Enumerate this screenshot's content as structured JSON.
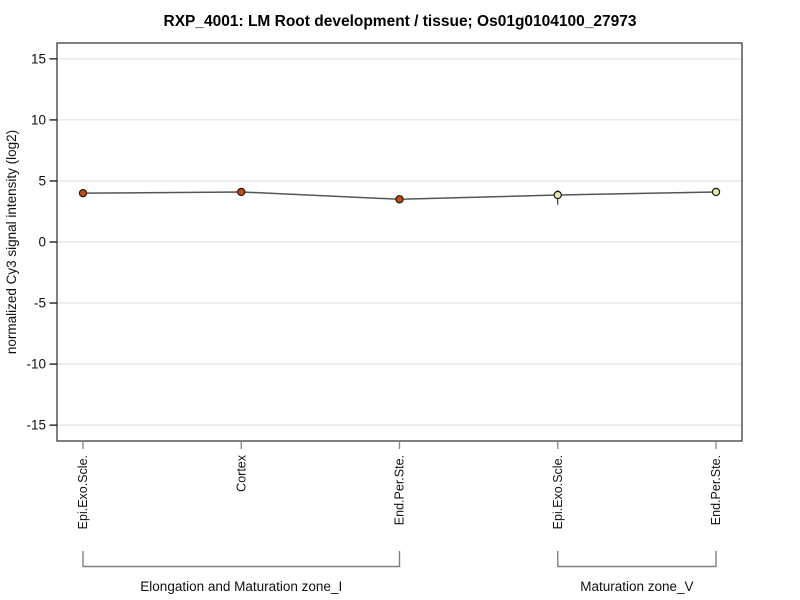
{
  "chart_data": {
    "type": "line",
    "title": "RXP_4001: LM Root development / tissue; Os01g0104100_27973",
    "ylabel": "normalized Cy3 signal intensity (log2)",
    "xlabel": "",
    "categories": [
      "Epi.Exo.Scle.",
      "Cortex",
      "End.Per.Ste.",
      "Epi.Exo.Scle.",
      "End.Per.Ste."
    ],
    "values": [
      4.0,
      4.1,
      3.5,
      3.85,
      4.1
    ],
    "error_bars": [
      null,
      null,
      null,
      {
        "low": 3.05,
        "high": 4.25
      },
      null
    ],
    "point_fills": [
      "#cc4a05",
      "#cc4a05",
      "#cc4a05",
      "#e9e9a8",
      "#e9e9a8"
    ],
    "point_stroke": "#1a1a1a",
    "groups": [
      {
        "label": "Elongation and Maturation zone_I",
        "from_index": 0,
        "to_index": 2
      },
      {
        "label": "Maturation zone_V",
        "from_index": 3,
        "to_index": 4
      }
    ],
    "yticks": [
      15,
      10,
      5,
      0,
      -5,
      -10,
      -15
    ],
    "ylim": [
      -16.3,
      16.3
    ],
    "grid": true,
    "legend": "none",
    "colors": {
      "line": "#555555",
      "grid": "#dddddd",
      "plot_border": "#3c3c3c",
      "axis_tick": "#111111",
      "x_tick": "#858585",
      "bracket": "#808080",
      "error_bar": "#222222",
      "background": "#ffffff"
    }
  }
}
